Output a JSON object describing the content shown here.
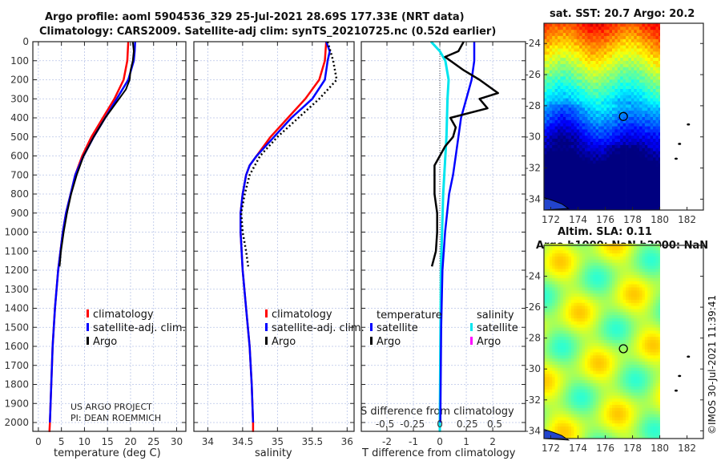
{
  "header": {
    "title_line1": "Argo profile: aoml 5904536_329 25-Jul-2021 28.69S 177.33E (NRT data)",
    "title_line2": "Climatology: CARS2009. Satellite-adj clim: synTS_20210725.nc (0.52d earlier)"
  },
  "credit": {
    "line1": "US ARGO PROJECT",
    "line2": "PI: DEAN ROEMMICH"
  },
  "footer_stamp": "©IMOS 30-Jul-2021 11:39:41",
  "colors": {
    "climatology": "#ff0000",
    "satellite": "#0000ff",
    "argo": "#000000",
    "sal_satellite": "#00e5ee",
    "sal_argo": "#ff00ff",
    "grid": "#b8c4e8"
  },
  "chart_data": [
    {
      "type": "line",
      "id": "temperature",
      "xlabel": "temperature (deg C)",
      "ylabel": "",
      "xlim": [
        -1.2,
        32
      ],
      "ylim": [
        2050,
        0
      ],
      "xticks": [
        0,
        5,
        10,
        15,
        20,
        25,
        30
      ],
      "yticks": [
        0,
        100,
        200,
        300,
        400,
        500,
        600,
        700,
        800,
        900,
        1000,
        1100,
        1200,
        1300,
        1400,
        1500,
        1600,
        1700,
        1800,
        1900,
        2000
      ],
      "grid": true,
      "legend": [
        "climatology",
        "satellite-adj. clim.",
        "Argo"
      ],
      "series": [
        {
          "name": "climatology",
          "depth": [
            0,
            100,
            200,
            300,
            400,
            500,
            600,
            700,
            800,
            900,
            1000,
            1200,
            1400,
            1600,
            1800,
            2000,
            2050
          ],
          "values": [
            19.5,
            19.3,
            18.5,
            16.5,
            14,
            11.5,
            9.5,
            8,
            7,
            6,
            5.3,
            4.3,
            3.6,
            3.1,
            2.8,
            2.5,
            2.4
          ]
        },
        {
          "name": "satellite-adj. clim.",
          "depth": [
            0,
            50,
            100,
            200,
            300,
            400,
            500,
            600,
            700,
            800,
            900,
            1000,
            1200,
            1400,
            1600,
            1800,
            2000
          ],
          "values": [
            21,
            20.9,
            20.7,
            19.5,
            17,
            14.5,
            12,
            9.8,
            8,
            7,
            6,
            5.3,
            4.3,
            3.6,
            3.1,
            2.8,
            2.5
          ]
        },
        {
          "name": "Argo",
          "depth": [
            0,
            50,
            100,
            150,
            200,
            250,
            300,
            350,
            400,
            500,
            600,
            700,
            800,
            900,
            1000,
            1100,
            1180
          ],
          "values": [
            20.5,
            20.7,
            20.5,
            20,
            19.8,
            19,
            17.5,
            16,
            14.5,
            12,
            9.8,
            8.3,
            7.1,
            6.2,
            5.5,
            4.9,
            4.6
          ]
        }
      ]
    },
    {
      "type": "line",
      "id": "salinity",
      "xlabel": "salinity",
      "xlim": [
        33.8,
        36.1
      ],
      "ylim": [
        2050,
        0
      ],
      "xticks": [
        34,
        34.5,
        35,
        35.5,
        36
      ],
      "grid": true,
      "legend": [
        "climatology",
        "satellite-adj. clim.",
        "Argo"
      ],
      "series": [
        {
          "name": "climatology",
          "depth": [
            0,
            100,
            200,
            300,
            400,
            500,
            600,
            650,
            700,
            800,
            900,
            1000,
            1200,
            1400,
            1600,
            1800,
            2000,
            2050
          ],
          "values": [
            35.7,
            35.68,
            35.6,
            35.4,
            35.15,
            34.9,
            34.7,
            34.6,
            34.55,
            34.5,
            34.47,
            34.47,
            34.5,
            34.55,
            34.6,
            34.63,
            34.65,
            34.65
          ]
        },
        {
          "name": "satellite-adj. clim.",
          "depth": [
            0,
            50,
            100,
            200,
            300,
            400,
            500,
            600,
            650,
            700,
            800,
            900,
            1000,
            1200,
            1400,
            1600,
            1800,
            2000
          ],
          "values": [
            35.7,
            35.75,
            35.72,
            35.68,
            35.5,
            35.2,
            34.95,
            34.7,
            34.6,
            34.55,
            34.5,
            34.47,
            34.47,
            34.5,
            34.55,
            34.6,
            34.63,
            34.65
          ]
        },
        {
          "name": "Argo",
          "depth": [
            0,
            100,
            200,
            300,
            400,
            500,
            600,
            700,
            800,
            900,
            1000,
            1100,
            1180
          ],
          "values": [
            35.72,
            35.8,
            35.85,
            35.6,
            35.3,
            35.0,
            34.75,
            34.6,
            34.53,
            34.48,
            34.5,
            34.55,
            34.58
          ]
        }
      ]
    },
    {
      "type": "line",
      "id": "difference",
      "xlabel": "T difference from climatology",
      "xlabel_top": "S difference from climatology",
      "xlim": [
        -2.97,
        3.24
      ],
      "ylim": [
        2050,
        0
      ],
      "xticks": [
        -2,
        -1,
        0,
        1,
        2
      ],
      "s_ticks": [
        "-0.5",
        "-0.25",
        "0",
        "0.25",
        "0.5"
      ],
      "s_tick_values": [
        -0.5,
        -0.25,
        0,
        0.25,
        0.5
      ],
      "grid": true,
      "legend_temperature_title": "temperature",
      "legend_salinity_title": "salinity",
      "legend_temperature": [
        "satellite",
        "Argo"
      ],
      "legend_salinity": [
        "satellite",
        "Argo"
      ],
      "series": [
        {
          "name": "T satellite",
          "axis": "T",
          "depth": [
            0,
            50,
            100,
            200,
            300,
            400,
            500,
            600,
            700,
            800,
            1000,
            1200,
            1500,
            2000
          ],
          "values": [
            1.3,
            1.3,
            1.3,
            1.2,
            1.0,
            0.8,
            0.7,
            0.6,
            0.5,
            0.35,
            0.2,
            0.1,
            0.05,
            0.02
          ]
        },
        {
          "name": "T Argo",
          "axis": "T",
          "depth": [
            0,
            50,
            80,
            100,
            150,
            200,
            250,
            270,
            300,
            350,
            400,
            450,
            500,
            550,
            600,
            650,
            700,
            800,
            900,
            1000,
            1100,
            1180
          ],
          "values": [
            0.9,
            0.7,
            0.2,
            0.4,
            0.9,
            1.5,
            2.0,
            2.2,
            1.5,
            1.8,
            0.4,
            0.6,
            0.5,
            0.2,
            0,
            -0.2,
            -0.2,
            -0.2,
            -0.1,
            -0.1,
            -0.15,
            -0.3
          ]
        },
        {
          "name": "S satellite",
          "axis": "S",
          "depth": [
            0,
            50,
            100,
            200,
            300,
            500,
            800,
            1200,
            2000,
            2050
          ],
          "values": [
            -0.08,
            0,
            0.05,
            0.08,
            0.07,
            0.06,
            0.03,
            0.01,
            0,
            0
          ]
        }
      ]
    },
    {
      "type": "heatmap",
      "id": "sst-map",
      "title": "sat. SST: 20.7 Argo: 20.2",
      "xlim": [
        171.5,
        183.2
      ],
      "ylim": [
        -34.7,
        -22.7
      ],
      "xticks": [
        172,
        174,
        176,
        178,
        180,
        182
      ],
      "yticks": [
        -24,
        -26,
        -28,
        -30,
        -32,
        -34
      ],
      "data_extent_lon": [
        171.5,
        180
      ],
      "argo_position": [
        177.33,
        -28.69
      ]
    },
    {
      "type": "heatmap",
      "id": "sla-map",
      "title_line1": "Altim. SLA: 0.11",
      "title_line2": "Argo h1000: NaN h2000: NaN",
      "xlim": [
        171.5,
        183.2
      ],
      "ylim": [
        -34.5,
        -22.0
      ],
      "xticks": [
        172,
        174,
        176,
        178,
        180,
        182
      ],
      "yticks": [
        -24,
        -26,
        -28,
        -30,
        -32,
        -34
      ],
      "data_extent_lon": [
        171.5,
        180
      ],
      "argo_position": [
        177.33,
        -28.69
      ]
    }
  ]
}
